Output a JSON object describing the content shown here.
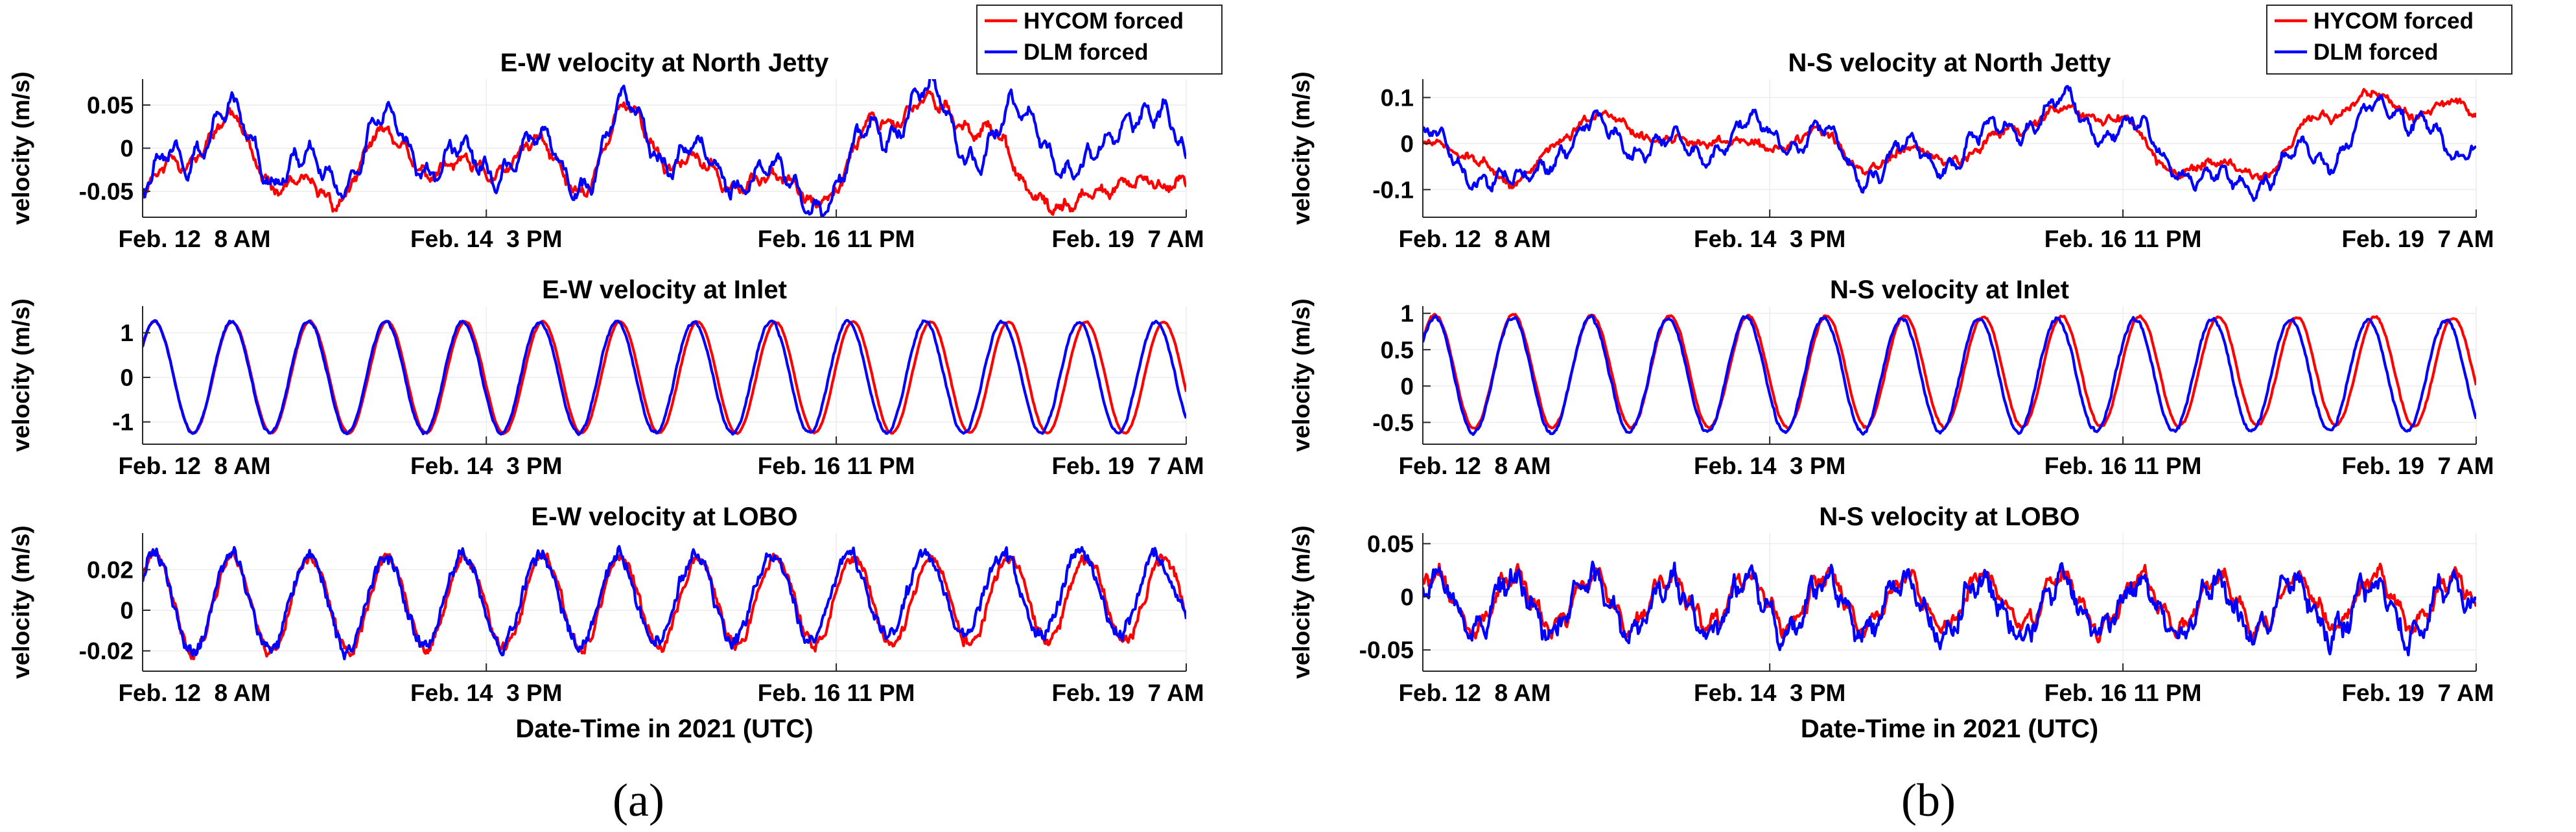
{
  "figure": {
    "subfigure_labels": [
      "(a)",
      "(b)"
    ],
    "x_axis_title": "Date-Time in 2021 (UTC)",
    "y_axis_label": "velocity (m/s)",
    "x_tick_labels": [
      "Feb. 12  8 AM",
      "Feb. 14  3 PM",
      "Feb. 16 11 PM",
      "Feb. 19  7 AM"
    ],
    "legend": {
      "series": [
        "HYCOM forced",
        "DLM forced"
      ]
    },
    "colors": {
      "hycom": "#ff0000",
      "dlm": "#0000ff"
    }
  },
  "chart_data": [
    {
      "type": "line",
      "column": "a",
      "row": 1,
      "title": "E-W velocity at North Jetty",
      "ylabel": "velocity (m/s)",
      "xlabel": "",
      "x_start_hours": 0,
      "x_end_hours": 167,
      "ylim": [
        -0.08,
        0.08
      ],
      "yticks": [
        -0.05,
        0,
        0.05
      ],
      "ytick_labels": [
        "-0.05",
        "0",
        "0.05"
      ],
      "legend": true,
      "series": [
        {
          "name": "HYCOM forced",
          "base": [
            [
              0,
              -0.055
            ],
            [
              6,
              -0.01
            ],
            [
              14,
              0.025
            ],
            [
              22,
              -0.04
            ],
            [
              30,
              -0.06
            ],
            [
              38,
              0.01
            ],
            [
              46,
              -0.02
            ],
            [
              54,
              -0.03
            ],
            [
              62,
              0.0
            ],
            [
              70,
              -0.04
            ],
            [
              78,
              0.04
            ],
            [
              86,
              -0.02
            ],
            [
              94,
              -0.035
            ],
            [
              102,
              -0.04
            ],
            [
              110,
              -0.055
            ],
            [
              118,
              0.04
            ],
            [
              126,
              0.045
            ],
            [
              134,
              0.03
            ],
            [
              142,
              -0.05
            ],
            [
              150,
              -0.07
            ],
            [
              158,
              -0.03
            ],
            [
              164,
              -0.055
            ],
            [
              167,
              -0.035
            ]
          ],
          "tidal_amp": 0.012,
          "semi_amp": 0.005,
          "noise": 0.007,
          "seed": 11
        },
        {
          "name": "DLM forced",
          "base": [
            [
              0,
              -0.06
            ],
            [
              6,
              0.0
            ],
            [
              14,
              0.03
            ],
            [
              22,
              -0.02
            ],
            [
              30,
              -0.035
            ],
            [
              38,
              0.02
            ],
            [
              46,
              -0.01
            ],
            [
              54,
              -0.025
            ],
            [
              62,
              0.0
            ],
            [
              70,
              -0.03
            ],
            [
              78,
              0.04
            ],
            [
              86,
              -0.015
            ],
            [
              94,
              -0.025
            ],
            [
              102,
              -0.04
            ],
            [
              110,
              -0.055
            ],
            [
              118,
              0.03
            ],
            [
              126,
              0.05
            ],
            [
              134,
              0.0
            ],
            [
              142,
              0.04
            ],
            [
              150,
              -0.04
            ],
            [
              158,
              0.05
            ],
            [
              164,
              0.02
            ],
            [
              167,
              -0.01
            ]
          ],
          "tidal_amp": 0.022,
          "semi_amp": 0.01,
          "noise": 0.008,
          "seed": 22
        }
      ]
    },
    {
      "type": "line",
      "column": "a",
      "row": 2,
      "title": "E-W velocity at Inlet",
      "ylabel": "velocity (m/s)",
      "xlabel": "",
      "x_start_hours": 0,
      "x_end_hours": 167,
      "ylim": [
        -1.5,
        1.6
      ],
      "yticks": [
        -1,
        0,
        1
      ],
      "ytick_labels": [
        "-1",
        "0",
        "1"
      ],
      "series": [
        {
          "name": "HYCOM forced",
          "base": [
            [
              0,
              0.0
            ],
            [
              167,
              0.0
            ]
          ],
          "tidal_amp": 1.25,
          "phase_drift": 0.0,
          "semi_amp": 0.0,
          "noise": 0.02,
          "seed": 31,
          "amp_decay": 0.0
        },
        {
          "name": "DLM forced",
          "base": [
            [
              0,
              0.0
            ],
            [
              167,
              0.0
            ]
          ],
          "tidal_amp": 1.25,
          "phase_drift": -1.2,
          "semi_amp": 0.0,
          "noise": 0.04,
          "seed": 32,
          "amp_decay": 0.0
        }
      ]
    },
    {
      "type": "line",
      "column": "a",
      "row": 3,
      "title": "E-W velocity at LOBO",
      "ylabel": "velocity (m/s)",
      "xlabel": "Date-Time in 2021 (UTC)",
      "x_start_hours": 0,
      "x_end_hours": 167,
      "ylim": [
        -0.03,
        0.038
      ],
      "yticks": [
        -0.02,
        0,
        0.02
      ],
      "ytick_labels": [
        "-0.02",
        "0",
        "0.02"
      ],
      "series": [
        {
          "name": "HYCOM forced",
          "base": [
            [
              0,
              0.003
            ],
            [
              167,
              0.005
            ]
          ],
          "tidal_amp": 0.024,
          "phase_drift": 0.0,
          "semi_amp": 0.0,
          "noise": 0.003,
          "seed": 41,
          "amp_decay": 0.3
        },
        {
          "name": "DLM forced",
          "base": [
            [
              0,
              0.003
            ],
            [
              167,
              0.008
            ]
          ],
          "tidal_amp": 0.024,
          "phase_drift": -1.0,
          "semi_amp": 0.0,
          "noise": 0.004,
          "seed": 42,
          "amp_decay": 0.4
        }
      ]
    },
    {
      "type": "line",
      "column": "b",
      "row": 1,
      "title": "N-S velocity at North Jetty",
      "ylabel": "velocity (m/s)",
      "xlabel": "",
      "x_start_hours": 0,
      "x_end_hours": 167,
      "ylim": [
        -0.16,
        0.14
      ],
      "yticks": [
        -0.1,
        0,
        0.1
      ],
      "ytick_labels": [
        "-0.1",
        "0",
        "0.1"
      ],
      "legend": true,
      "series": [
        {
          "name": "HYCOM forced",
          "base": [
            [
              0,
              -0.01
            ],
            [
              8,
              -0.02
            ],
            [
              14,
              -0.1
            ],
            [
              22,
              0.02
            ],
            [
              30,
              0.06
            ],
            [
              38,
              0.0
            ],
            [
              46,
              0.01
            ],
            [
              54,
              -0.01
            ],
            [
              62,
              0.02
            ],
            [
              70,
              -0.05
            ],
            [
              78,
              -0.02
            ],
            [
              86,
              -0.03
            ],
            [
              94,
              0.04
            ],
            [
              102,
              0.07
            ],
            [
              110,
              0.06
            ],
            [
              118,
              -0.05
            ],
            [
              126,
              -0.05
            ],
            [
              134,
              -0.06
            ],
            [
              142,
              0.06
            ],
            [
              150,
              0.1
            ],
            [
              158,
              0.07
            ],
            [
              164,
              0.08
            ],
            [
              167,
              0.06
            ]
          ],
          "tidal_amp": 0.012,
          "semi_amp": 0.004,
          "noise": 0.01,
          "seed": 51
        },
        {
          "name": "DLM forced",
          "base": [
            [
              0,
              0.0
            ],
            [
              8,
              -0.05
            ],
            [
              14,
              -0.1
            ],
            [
              22,
              0.0
            ],
            [
              30,
              0.03
            ],
            [
              38,
              -0.02
            ],
            [
              46,
              0.0
            ],
            [
              54,
              0.03
            ],
            [
              62,
              0.01
            ],
            [
              70,
              -0.05
            ],
            [
              78,
              -0.03
            ],
            [
              86,
              -0.02
            ],
            [
              94,
              0.05
            ],
            [
              102,
              0.07
            ],
            [
              110,
              0.04
            ],
            [
              118,
              -0.02
            ],
            [
              126,
              -0.1
            ],
            [
              134,
              -0.06
            ],
            [
              142,
              -0.03
            ],
            [
              150,
              0.05
            ],
            [
              158,
              0.08
            ],
            [
              164,
              -0.07
            ],
            [
              167,
              0.0
            ]
          ],
          "tidal_amp": 0.035,
          "semi_amp": 0.015,
          "noise": 0.012,
          "seed": 52
        }
      ]
    },
    {
      "type": "line",
      "column": "b",
      "row": 2,
      "title": "N-S velocity at Inlet",
      "ylabel": "velocity (m/s)",
      "xlabel": "",
      "x_start_hours": 0,
      "x_end_hours": 167,
      "ylim": [
        -0.8,
        1.1
      ],
      "yticks": [
        -0.5,
        0,
        0.5,
        1
      ],
      "ytick_labels": [
        "-0.5",
        "0",
        "0.5",
        "1"
      ],
      "series": [
        {
          "name": "HYCOM forced",
          "base": [
            [
              0,
              0.2
            ],
            [
              167,
              0.2
            ]
          ],
          "tidal_amp": 0.78,
          "phase_drift": 0.0,
          "semi_amp": 0.0,
          "noise": 0.02,
          "seed": 61,
          "amp_decay": 0.1
        },
        {
          "name": "DLM forced",
          "base": [
            [
              0,
              0.15
            ],
            [
              167,
              0.15
            ]
          ],
          "tidal_amp": 0.8,
          "phase_drift": -1.2,
          "semi_amp": 0.0,
          "noise": 0.03,
          "seed": 62,
          "amp_decay": 0.1
        }
      ]
    },
    {
      "type": "line",
      "column": "b",
      "row": 3,
      "title": "N-S velocity at LOBO",
      "ylabel": "velocity (m/s)",
      "xlabel": "Date-Time in 2021 (UTC)",
      "x_start_hours": 0,
      "x_end_hours": 167,
      "ylim": [
        -0.07,
        0.06
      ],
      "yticks": [
        -0.05,
        0,
        0.05
      ],
      "ytick_labels": [
        "-0.05",
        "0",
        "0.05"
      ],
      "series": [
        {
          "name": "HYCOM forced",
          "base": [
            [
              0,
              -0.005
            ],
            [
              167,
              -0.005
            ]
          ],
          "tidal_amp": 0.025,
          "phase_drift": 0.0,
          "semi_amp": 0.006,
          "noise": 0.008,
          "seed": 71,
          "amp_decay": 0.2
        },
        {
          "name": "DLM forced",
          "base": [
            [
              0,
              -0.008
            ],
            [
              167,
              -0.01
            ]
          ],
          "tidal_amp": 0.027,
          "phase_drift": -0.6,
          "semi_amp": 0.008,
          "noise": 0.011,
          "seed": 72,
          "amp_decay": 0.2
        }
      ]
    }
  ]
}
